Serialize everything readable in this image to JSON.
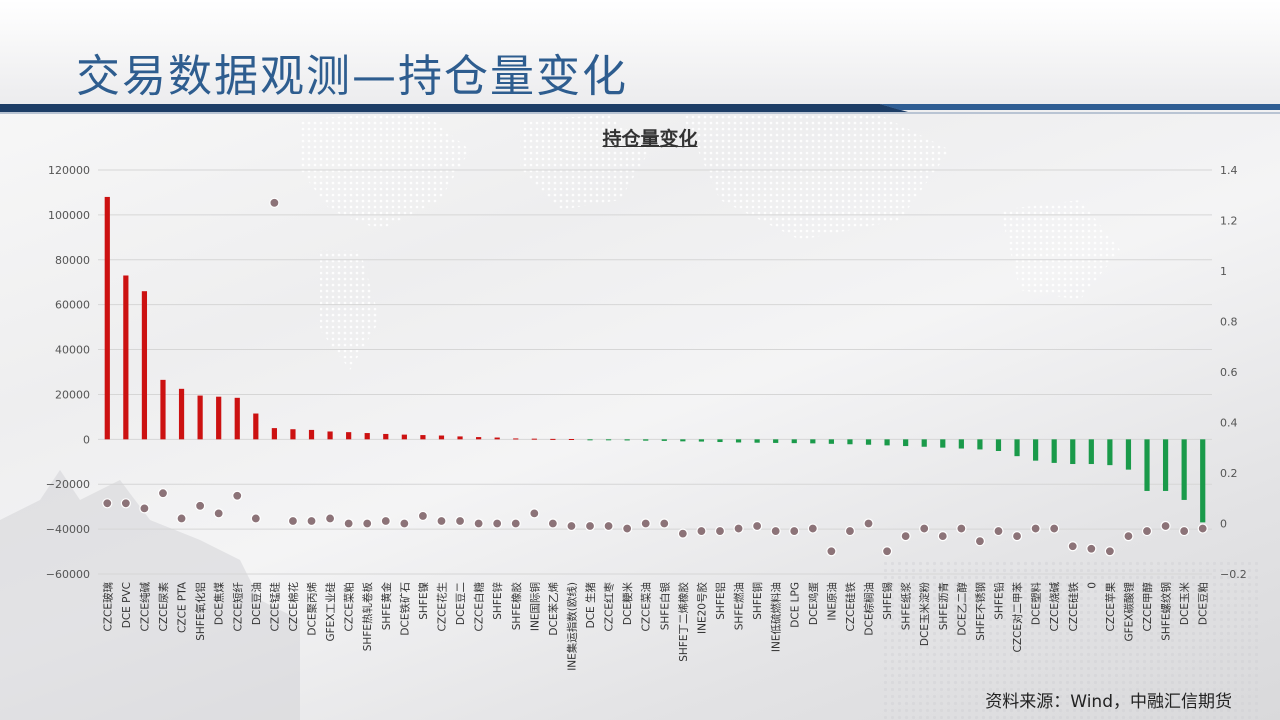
{
  "page": {
    "title": "交易数据观测—持仓量变化"
  },
  "source": "资料来源：Wind，中融汇信期货",
  "colors": {
    "title_text": "#2e5d8f",
    "band_dark": "#1d3d66",
    "positive_bar": "#cc1111",
    "negative_bar": "#1a9a4a",
    "dot": "#8c7378"
  },
  "chart_data": {
    "type": "bar",
    "title": "持仓量变化",
    "left_axis": {
      "ylim": [
        -60000,
        120000
      ],
      "ticks": [
        "120000",
        "100000",
        "80000",
        "60000",
        "40000",
        "20000",
        "0",
        "−20000",
        "−40000",
        "−60000"
      ]
    },
    "right_axis": {
      "ylim": [
        -0.2,
        1.4
      ],
      "ticks": [
        "1.4",
        "1.2",
        "1",
        "0.8",
        "0.6",
        "0.4",
        "0.2",
        "0",
        "−0.2"
      ]
    },
    "grid": true,
    "categories": [
      "CZCE玻璃",
      "DCE PVC",
      "CZCE纯碱",
      "CZCE尿素",
      "CZCE PTA",
      "SHFE氧化铝",
      "DCE焦煤",
      "CZCE短纤",
      "DCE豆油",
      "CZCE锰硅",
      "CZCE棉花",
      "DCE聚丙烯",
      "GFEX工业硅",
      "CZCE菜粕",
      "SHFE热轧卷板",
      "SHFE黄金",
      "DCE铁矿石",
      "SHFE镍",
      "CZCE花生",
      "DCE豆二",
      "CZCE白糖",
      "SHFE锌",
      "SHFE橡胶",
      "INE国际铜",
      "DCE苯乙烯",
      "INE集运指数(欧线)",
      "DCE 生猪",
      "CZCE红枣",
      "DCE粳米",
      "CZCE菜油",
      "SHFE白银",
      "SHFE丁二烯橡胶",
      "INE20号胶",
      "SHFE铝",
      "SHFE燃油",
      "SHFE铜",
      "INE低硫燃料油",
      "DCE LPG",
      "DCE鸡蛋",
      "INE原油",
      "CZCE硅铁",
      "DCE棕榈油",
      "SHFE锡",
      "SHFE纸浆",
      "DCE玉米淀粉",
      "SHFE沥青",
      "DCE乙二醇",
      "SHFE不锈钢",
      "SHFE铅",
      "CZCE对二甲苯",
      "DCE塑料",
      "CZCE烧碱",
      "CZCE硅铁",
      "0",
      "CZCE苹果",
      "GFEX碳酸锂",
      "CZCE甲醇",
      "SHFE螺纹钢",
      "DCE玉米",
      "DCE豆粕"
    ],
    "series": [
      {
        "axis": "left",
        "type": "bar",
        "values": [
          108000,
          73000,
          66000,
          26500,
          22500,
          19500,
          19000,
          18500,
          11500,
          5000,
          4500,
          4200,
          3500,
          3200,
          2800,
          2400,
          2100,
          1900,
          1700,
          1300,
          1000,
          800,
          400,
          300,
          200,
          150,
          -200,
          -300,
          -500,
          -600,
          -700,
          -900,
          -1000,
          -1200,
          -1400,
          -1500,
          -1600,
          -1700,
          -1800,
          -2000,
          -2200,
          -2400,
          -2700,
          -3000,
          -3300,
          -3700,
          -4100,
          -4500,
          -5200,
          -7500,
          -9500,
          -10500,
          -11000,
          -11000,
          -11500,
          -13500,
          -23000,
          -23000,
          -27000,
          -37000
        ]
      },
      {
        "axis": "right",
        "type": "scatter",
        "values": [
          0.08,
          0.08,
          0.06,
          0.12,
          0.02,
          0.07,
          0.04,
          0.11,
          0.02,
          1.27,
          0.01,
          0.01,
          0.02,
          0.0,
          0.0,
          0.01,
          0.0,
          0.03,
          0.01,
          0.01,
          0.0,
          0.0,
          0.0,
          0.04,
          0.0,
          -0.01,
          -0.01,
          -0.01,
          -0.02,
          0.0,
          0.0,
          -0.04,
          -0.03,
          -0.03,
          -0.02,
          -0.01,
          -0.03,
          -0.03,
          -0.02,
          -0.11,
          -0.03,
          0.0,
          -0.11,
          -0.05,
          -0.02,
          -0.05,
          -0.02,
          -0.07,
          -0.03,
          -0.05,
          -0.02,
          -0.02,
          -0.09,
          -0.1,
          -0.11,
          -0.05,
          -0.03,
          -0.01,
          -0.03,
          -0.02
        ]
      }
    ]
  }
}
